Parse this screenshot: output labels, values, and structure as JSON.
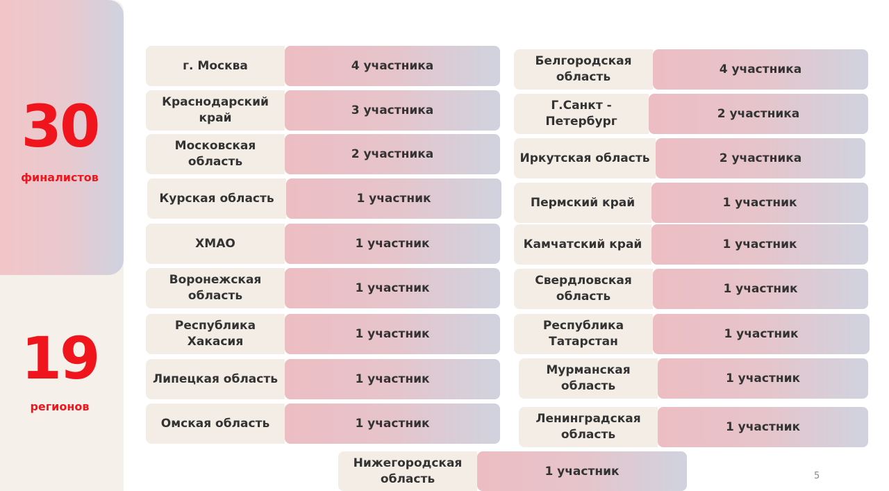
{
  "summary": {
    "finalists_count": "30",
    "finalists_label": "финалистов",
    "regions_count": "19",
    "regions_label": "регионов"
  },
  "regions": [
    {
      "name": "г. Москва",
      "value": "4 участника"
    },
    {
      "name": "Краснодарский край",
      "value": "3 участника"
    },
    {
      "name": "Московская область",
      "value": "2 участника"
    },
    {
      "name": "Курская область",
      "value": "1 участник"
    },
    {
      "name": "ХМАО",
      "value": "1 участник"
    },
    {
      "name": "Воронежская область",
      "value": "1 участник"
    },
    {
      "name": "Республика Хакасия",
      "value": "1 участник"
    },
    {
      "name": "Липецкая область",
      "value": "1 участник"
    },
    {
      "name": "Омская область",
      "value": "1 участник"
    },
    {
      "name": "Белгородская область",
      "value": "4 участника"
    },
    {
      "name": "Г.Санкт - Петербург",
      "value": "2 участника"
    },
    {
      "name": "Иркутская область",
      "value": "2 участника"
    },
    {
      "name": "Пермский край",
      "value": "1 участник"
    },
    {
      "name": "Камчатский край",
      "value": "1 участник"
    },
    {
      "name": "Свердловская область",
      "value": "1 участник"
    },
    {
      "name": "Республика Татарстан",
      "value": "1 участник"
    },
    {
      "name": "Мурманская область",
      "value": "1 участник"
    },
    {
      "name": "Ленинградская область",
      "value": "1 участник"
    },
    {
      "name": "Нижегородская область",
      "value": "1 участник"
    }
  ],
  "page_number": "5"
}
